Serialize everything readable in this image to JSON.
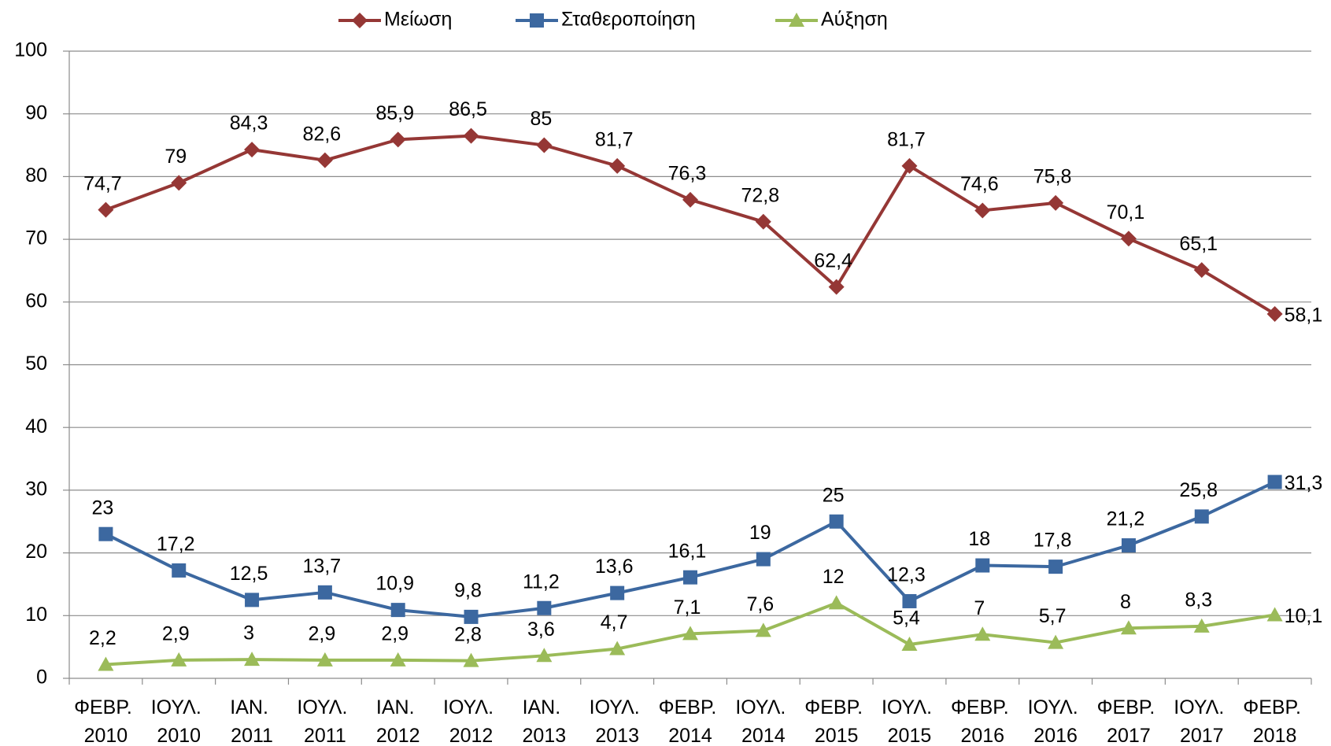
{
  "chart_data": {
    "type": "line",
    "categories": [
      "ΦΕΒΡ. 2010",
      "ΙΟΥΛ. 2010",
      "ΙΑΝ. 2011",
      "ΙΟΥΛ. 2011",
      "ΙΑΝ. 2012",
      "ΙΟΥΛ. 2012",
      "ΙΑΝ. 2013",
      "ΙΟΥΛ. 2013",
      "ΦΕΒΡ. 2014",
      "ΙΟΥΛ. 2014",
      "ΦΕΒΡ. 2015",
      "ΙΟΥΛ. 2015",
      "ΦΕΒΡ. 2016",
      "ΙΟΥΛ. 2016",
      "ΦΕΒΡ. 2017",
      "ΙΟΥΛ. 2017",
      "ΦΕΒΡ. 2018"
    ],
    "series": [
      {
        "name": "Μείωση",
        "color": "#953735",
        "marker": "diamond",
        "values": [
          74.7,
          79,
          84.3,
          82.6,
          85.9,
          86.5,
          85,
          81.7,
          76.3,
          72.8,
          62.4,
          81.7,
          74.6,
          75.8,
          70.1,
          65.1,
          58.1
        ],
        "value_labels": [
          "74,7",
          "79",
          "84,3",
          "82,6",
          "85,9",
          "86,5",
          "85",
          "81,7",
          "76,3",
          "72,8",
          "62,4",
          "81,7",
          "74,6",
          "75,8",
          "70,1",
          "65,1",
          "58,1"
        ]
      },
      {
        "name": "Σταθεροποίηση",
        "color": "#3c68a0",
        "marker": "square",
        "values": [
          23,
          17.2,
          12.5,
          13.7,
          10.9,
          9.8,
          11.2,
          13.6,
          16.1,
          19,
          25,
          12.3,
          18,
          17.8,
          21.2,
          25.8,
          31.3
        ],
        "value_labels": [
          "23",
          "17,2",
          "12,5",
          "13,7",
          "10,9",
          "9,8",
          "11,2",
          "13,6",
          "16,1",
          "19",
          "25",
          "12,3",
          "18",
          "17,8",
          "21,2",
          "25,8",
          "31,3"
        ]
      },
      {
        "name": "Αύξηση",
        "color": "#9bbb59",
        "marker": "triangle",
        "values": [
          2.2,
          2.9,
          3,
          2.9,
          2.9,
          2.8,
          3.6,
          4.7,
          7.1,
          7.6,
          12,
          5.4,
          7,
          5.7,
          8,
          8.3,
          10.1
        ],
        "value_labels": [
          "2,2",
          "2,9",
          "3",
          "2,9",
          "2,9",
          "2,8",
          "3,6",
          "4,7",
          "7,1",
          "7,6",
          "12",
          "5,4",
          "7",
          "5,7",
          "8",
          "8,3",
          "10,1"
        ]
      }
    ],
    "ylim": [
      0,
      100
    ],
    "yticks": [
      0,
      10,
      20,
      30,
      40,
      50,
      60,
      70,
      80,
      90,
      100
    ],
    "grid": true,
    "legend": "top"
  }
}
